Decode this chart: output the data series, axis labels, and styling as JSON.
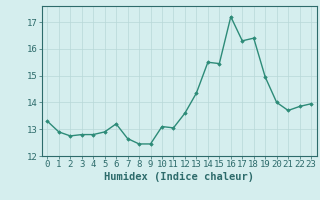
{
  "x": [
    0,
    1,
    2,
    3,
    4,
    5,
    6,
    7,
    8,
    9,
    10,
    11,
    12,
    13,
    14,
    15,
    16,
    17,
    18,
    19,
    20,
    21,
    22,
    23
  ],
  "y": [
    13.3,
    12.9,
    12.75,
    12.8,
    12.8,
    12.9,
    13.2,
    12.65,
    12.45,
    12.45,
    13.1,
    13.05,
    13.6,
    14.35,
    15.5,
    15.45,
    17.2,
    16.3,
    16.4,
    14.95,
    14.0,
    13.7,
    13.85,
    13.95
  ],
  "line_color": "#2d8b78",
  "marker": "D",
  "marker_size": 1.8,
  "bg_color": "#d5eeee",
  "grid_color": "#b8d8d8",
  "xlabel": "Humidex (Indice chaleur)",
  "ylim": [
    12,
    17.6
  ],
  "xlim": [
    -0.5,
    23.5
  ],
  "yticks": [
    12,
    13,
    14,
    15,
    16,
    17
  ],
  "xticks": [
    0,
    1,
    2,
    3,
    4,
    5,
    6,
    7,
    8,
    9,
    10,
    11,
    12,
    13,
    14,
    15,
    16,
    17,
    18,
    19,
    20,
    21,
    22,
    23
  ],
  "tick_label_fontsize": 6.5,
  "xlabel_fontsize": 7.5,
  "tick_color": "#2d6b6b",
  "axis_color": "#2d6b6b",
  "linewidth": 1.0
}
